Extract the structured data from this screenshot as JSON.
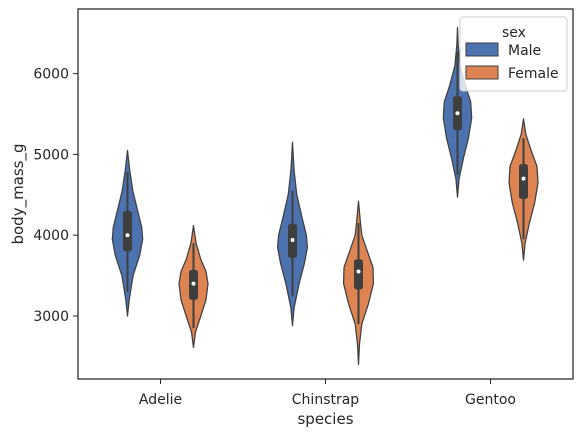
{
  "chart_data": {
    "type": "violin",
    "xlabel": "species",
    "ylabel": "body_mass_g",
    "categories": [
      "Adelie",
      "Chinstrap",
      "Gentoo"
    ],
    "ylim": [
      2220,
      6800
    ],
    "yticks": [
      3000,
      4000,
      5000,
      6000
    ],
    "grid": false,
    "legend": {
      "title": "sex",
      "position": "top-right"
    },
    "series": [
      {
        "name": "Male",
        "color": "#4c72b0",
        "violins": [
          {
            "min": 3000,
            "max": 5050,
            "q1": 3800,
            "median": 4000,
            "q3": 4300,
            "whisker_low": 3300,
            "whisker_high": 4780,
            "profile": [
              [
                3000,
                0
              ],
              [
                3200,
                0.05
              ],
              [
                3500,
                0.17
              ],
              [
                3750,
                0.37
              ],
              [
                3950,
                0.46
              ],
              [
                4100,
                0.43
              ],
              [
                4300,
                0.31
              ],
              [
                4550,
                0.16
              ],
              [
                4800,
                0.07
              ],
              [
                5050,
                0
              ]
            ]
          },
          {
            "min": 2880,
            "max": 5150,
            "q1": 3720,
            "median": 3940,
            "q3": 4140,
            "whisker_low": 3250,
            "whisker_high": 4550,
            "profile": [
              [
                2880,
                0
              ],
              [
                3100,
                0.05
              ],
              [
                3400,
                0.2
              ],
              [
                3650,
                0.36
              ],
              [
                3850,
                0.45
              ],
              [
                4000,
                0.42
              ],
              [
                4200,
                0.3
              ],
              [
                4500,
                0.13
              ],
              [
                4800,
                0.05
              ],
              [
                5150,
                0
              ]
            ]
          },
          {
            "min": 4470,
            "max": 6570,
            "q1": 5300,
            "median": 5510,
            "q3": 5720,
            "whisker_low": 4750,
            "whisker_high": 6270,
            "profile": [
              [
                4470,
                0
              ],
              [
                4700,
                0.05
              ],
              [
                4950,
                0.18
              ],
              [
                5200,
                0.33
              ],
              [
                5450,
                0.43
              ],
              [
                5650,
                0.4
              ],
              [
                5850,
                0.24
              ],
              [
                6100,
                0.08
              ],
              [
                6350,
                0.02
              ],
              [
                6570,
                0
              ]
            ]
          }
        ]
      },
      {
        "name": "Female",
        "color": "#dd8452",
        "violins": [
          {
            "min": 2610,
            "max": 4120,
            "q1": 3200,
            "median": 3400,
            "q3": 3570,
            "whisker_low": 2850,
            "whisker_high": 3900,
            "profile": [
              [
                2610,
                0
              ],
              [
                2800,
                0.06
              ],
              [
                3000,
                0.22
              ],
              [
                3200,
                0.38
              ],
              [
                3400,
                0.44
              ],
              [
                3550,
                0.38
              ],
              [
                3700,
                0.22
              ],
              [
                3900,
                0.08
              ],
              [
                4120,
                0
              ]
            ]
          },
          {
            "min": 2400,
            "max": 4420,
            "q1": 3330,
            "median": 3550,
            "q3": 3700,
            "whisker_low": 2900,
            "whisker_high": 4150,
            "profile": [
              [
                2400,
                0
              ],
              [
                2650,
                0.03
              ],
              [
                2900,
                0.1
              ],
              [
                3150,
                0.3
              ],
              [
                3400,
                0.45
              ],
              [
                3600,
                0.44
              ],
              [
                3800,
                0.27
              ],
              [
                4000,
                0.1
              ],
              [
                4200,
                0.05
              ],
              [
                4420,
                0
              ]
            ]
          },
          {
            "min": 3690,
            "max": 5440,
            "q1": 4450,
            "median": 4700,
            "q3": 4880,
            "whisker_low": 3950,
            "whisker_high": 5200,
            "profile": [
              [
                3690,
                0
              ],
              [
                3900,
                0.05
              ],
              [
                4150,
                0.18
              ],
              [
                4400,
                0.34
              ],
              [
                4650,
                0.44
              ],
              [
                4850,
                0.41
              ],
              [
                5050,
                0.23
              ],
              [
                5250,
                0.07
              ],
              [
                5440,
                0
              ]
            ]
          }
        ]
      }
    ]
  }
}
